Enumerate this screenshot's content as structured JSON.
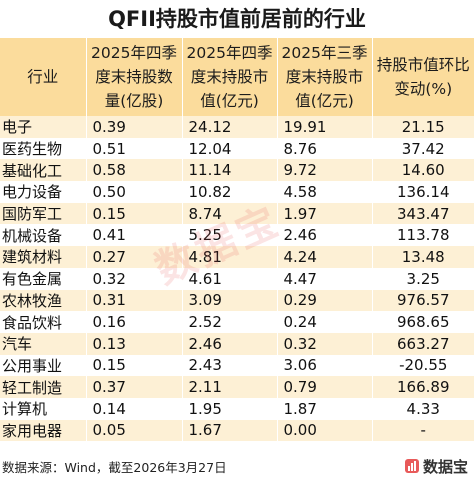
{
  "title": "QFII持股市值前居前的行业",
  "headers": [
    "行业",
    "2025年四季度末持股数量(亿股)",
    "2025年四季度末持股市值(亿元)",
    "2025年三季度末持股市值(亿元)",
    "持股市值环比变动(%)"
  ],
  "rows": [
    {
      "industry": "电子",
      "shares": "0.39",
      "value_q4": "24.12",
      "value_q3": "19.91",
      "change": "21.15"
    },
    {
      "industry": "医药生物",
      "shares": "0.51",
      "value_q4": "12.04",
      "value_q3": "8.76",
      "change": "37.42"
    },
    {
      "industry": "基础化工",
      "shares": "0.58",
      "value_q4": "11.14",
      "value_q3": "9.72",
      "change": "14.60"
    },
    {
      "industry": "电力设备",
      "shares": "0.50",
      "value_q4": "10.82",
      "value_q3": "4.58",
      "change": "136.14"
    },
    {
      "industry": "国防军工",
      "shares": "0.15",
      "value_q4": "8.74",
      "value_q3": "1.97",
      "change": "343.47"
    },
    {
      "industry": "机械设备",
      "shares": "0.41",
      "value_q4": "5.25",
      "value_q3": "2.46",
      "change": "113.78"
    },
    {
      "industry": "建筑材料",
      "shares": "0.27",
      "value_q4": "4.81",
      "value_q3": "4.24",
      "change": "13.48"
    },
    {
      "industry": "有色金属",
      "shares": "0.32",
      "value_q4": "4.61",
      "value_q3": "4.47",
      "change": "3.25"
    },
    {
      "industry": "农林牧渔",
      "shares": "0.31",
      "value_q4": "3.09",
      "value_q3": "0.29",
      "change": "976.57"
    },
    {
      "industry": "食品饮料",
      "shares": "0.16",
      "value_q4": "2.52",
      "value_q3": "0.24",
      "change": "968.65"
    },
    {
      "industry": "汽车",
      "shares": "0.13",
      "value_q4": "2.46",
      "value_q3": "0.32",
      "change": "663.27"
    },
    {
      "industry": "公用事业",
      "shares": "0.15",
      "value_q4": "2.43",
      "value_q3": "3.06",
      "change": "-20.55"
    },
    {
      "industry": "轻工制造",
      "shares": "0.37",
      "value_q4": "2.11",
      "value_q3": "0.79",
      "change": "166.89"
    },
    {
      "industry": "计算机",
      "shares": "0.14",
      "value_q4": "1.95",
      "value_q3": "1.87",
      "change": "4.33"
    },
    {
      "industry": "家用电器",
      "shares": "0.05",
      "value_q4": "1.67",
      "value_q3": "0.00",
      "change": "-"
    }
  ],
  "source": "数据来源：Wind，截至2026年3月27日",
  "brand": "数据宝",
  "watermark": "数据宝",
  "colors": {
    "header_bg": "#fbdc9c",
    "stripe_bg": "#fdf0d5",
    "watermark": "#e85a5a"
  }
}
